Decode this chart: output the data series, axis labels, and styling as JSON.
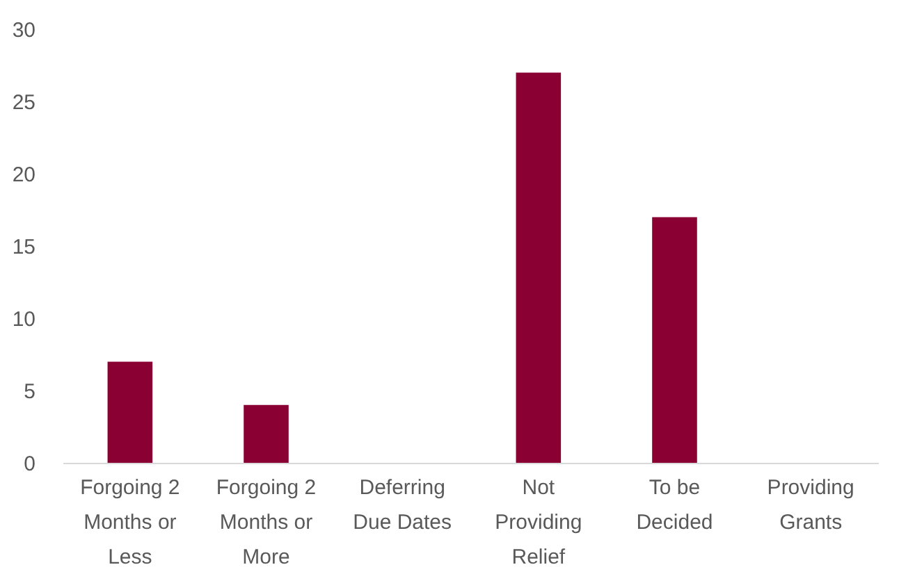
{
  "chart_data": {
    "type": "bar",
    "categories": [
      "Forgoing 2 Months or Less",
      "Forgoing 2 Months or More",
      "Deferring Due Dates",
      "Not Providing Relief",
      "To be Decided",
      "Providing Grants"
    ],
    "values": [
      7,
      4,
      0,
      27,
      17,
      0
    ],
    "color": "#8b0033",
    "ylim": [
      0,
      30
    ],
    "yticks": [
      0,
      5,
      10,
      15,
      20,
      25,
      30
    ],
    "grid": false
  }
}
